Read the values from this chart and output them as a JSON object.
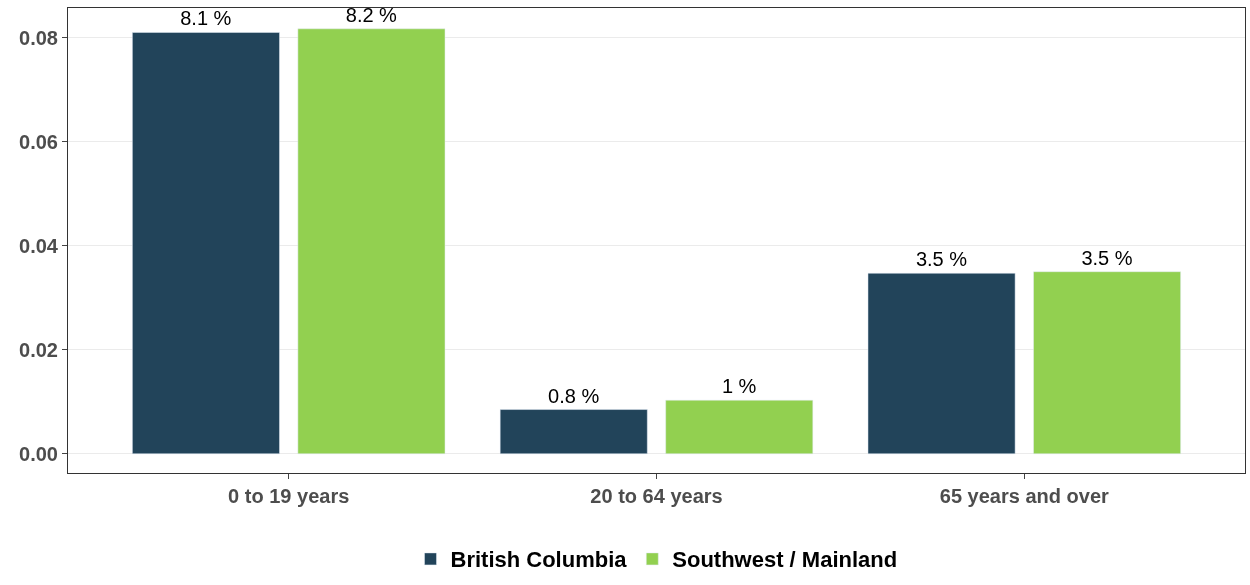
{
  "chart_data": {
    "type": "bar",
    "categories": [
      "0 to 19 years",
      "20 to 64 years",
      "65 years and over"
    ],
    "series": [
      {
        "name": "British Columbia",
        "color": "#22445a",
        "values": [
          0.081,
          0.0085,
          0.0347
        ],
        "value_labels": [
          "8.1 %",
          "0.8 %",
          "3.5 %"
        ]
      },
      {
        "name": "Southwest / Mainland",
        "color": "#92d050",
        "values": [
          0.0817,
          0.0103,
          0.035
        ],
        "value_labels": [
          "8.2 %",
          "1 %",
          "3.5 %"
        ]
      }
    ],
    "ylim": [
      -0.0037,
      0.0857
    ],
    "yticks": [
      {
        "value": 0,
        "label": "0.00"
      },
      {
        "value": 0.02,
        "label": "0.02"
      },
      {
        "value": 0.04,
        "label": "0.04"
      },
      {
        "value": 0.06,
        "label": "0.06"
      },
      {
        "value": 0.08,
        "label": "0.08"
      }
    ],
    "grid": "y",
    "legend": "bottom"
  }
}
